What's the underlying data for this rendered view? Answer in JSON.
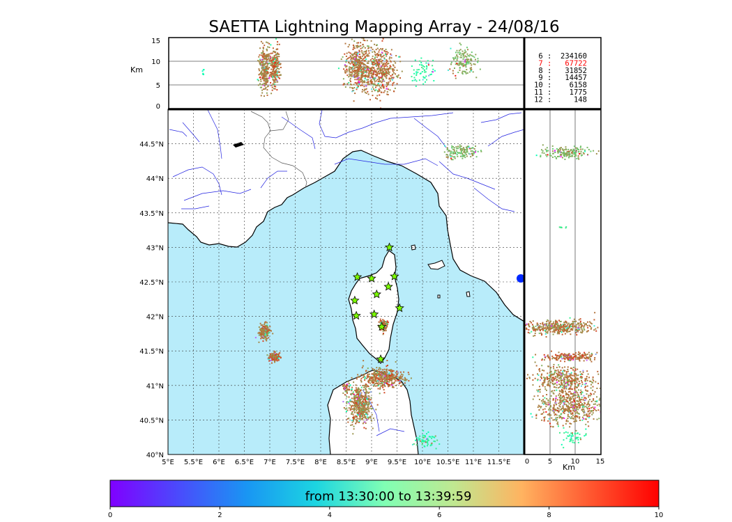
{
  "chart_data": {
    "type": "scatter",
    "title": "SAETTA Lightning Mapping Array - 24/08/16",
    "map": {
      "lon_range": [
        5.0,
        12.0
      ],
      "lat_range": [
        40.0,
        45.0
      ],
      "x_ticks": [
        "5°E",
        "5.5°E",
        "6°E",
        "6.5°E",
        "7°E",
        "7.5°E",
        "8°E",
        "8.5°E",
        "9°E",
        "9.5°E",
        "10°E",
        "10.5°E",
        "11°E",
        "11.5°E"
      ],
      "y_ticks": [
        "40°N",
        "40.5°N",
        "41°N",
        "41.5°N",
        "42°N",
        "42.5°N",
        "43°N",
        "43.5°N",
        "44°N",
        "44.5°N"
      ],
      "sea_color": "#b8ecfa",
      "land_color": "#ffffff",
      "station_color": "#7cfc00",
      "stations": [
        {
          "lon": 9.35,
          "lat": 43.0
        },
        {
          "lon": 8.72,
          "lat": 42.57
        },
        {
          "lon": 9.0,
          "lat": 42.55
        },
        {
          "lon": 9.45,
          "lat": 42.58
        },
        {
          "lon": 9.33,
          "lat": 42.43
        },
        {
          "lon": 9.1,
          "lat": 42.32
        },
        {
          "lon": 8.67,
          "lat": 42.23
        },
        {
          "lon": 9.55,
          "lat": 42.12
        },
        {
          "lon": 8.7,
          "lat": 42.01
        },
        {
          "lon": 9.05,
          "lat": 42.03
        },
        {
          "lon": 9.2,
          "lat": 41.85
        },
        {
          "lon": 9.18,
          "lat": 41.38
        }
      ],
      "clusters": [
        {
          "lon": 6.88,
          "lat": 41.78,
          "slon": 0.05,
          "slat": 0.05,
          "n": 220,
          "t": 8.4
        },
        {
          "lon": 7.08,
          "lat": 41.42,
          "slon": 0.05,
          "slat": 0.03,
          "n": 170,
          "t": 8.7
        },
        {
          "lon": 9.22,
          "lat": 41.88,
          "slon": 0.04,
          "slat": 0.04,
          "n": 120,
          "t": 8.6
        },
        {
          "lon": 8.76,
          "lat": 40.72,
          "slon": 0.11,
          "slat": 0.14,
          "n": 520,
          "t": 8.3
        },
        {
          "lon": 9.22,
          "lat": 41.12,
          "slon": 0.2,
          "slat": 0.07,
          "n": 420,
          "t": 8.5
        },
        {
          "lon": 8.5,
          "lat": 40.97,
          "slon": 0.03,
          "slat": 0.04,
          "n": 40,
          "t": 8.5
        },
        {
          "lon": 10.77,
          "lat": 44.4,
          "slon": 0.16,
          "slat": 0.05,
          "n": 130,
          "t": 7.5
        },
        {
          "lon": 10.05,
          "lat": 40.23,
          "slon": 0.1,
          "slat": 0.06,
          "n": 60,
          "t": 5.8
        }
      ]
    },
    "altitude_lon_panel": {
      "ylabel": "Km",
      "y_range": [
        0,
        15
      ],
      "y_ticks": [
        "0",
        "5",
        "10",
        "15"
      ],
      "gridlines_km": [
        5,
        10
      ],
      "clusters": [
        {
          "lon": 6.88,
          "alt": 8.5,
          "slon": 0.05,
          "salt": 2.4,
          "n": 260,
          "t": 8.3
        },
        {
          "lon": 7.08,
          "alt": 8.8,
          "slon": 0.05,
          "salt": 2.2,
          "n": 220,
          "t": 8.5
        },
        {
          "lon": 8.72,
          "alt": 8.8,
          "slon": 0.13,
          "salt": 2.6,
          "n": 420,
          "t": 8.4
        },
        {
          "lon": 9.15,
          "alt": 8.2,
          "slon": 0.16,
          "salt": 2.6,
          "n": 460,
          "t": 8.5
        },
        {
          "lon": 10.0,
          "alt": 8.2,
          "slon": 0.12,
          "salt": 1.4,
          "n": 60,
          "t": 5.8
        },
        {
          "lon": 10.8,
          "alt": 10.3,
          "slon": 0.12,
          "salt": 1.6,
          "n": 140,
          "t": 7.6
        },
        {
          "lon": 5.68,
          "alt": 7.8,
          "slon": 0.01,
          "salt": 0.5,
          "n": 6,
          "t": 5.0
        }
      ]
    },
    "stats": {
      "rows": [
        {
          "n": "6",
          "count": "234160",
          "color": "#000000"
        },
        {
          "n": "7",
          "count": "67722",
          "color": "#ff0000"
        },
        {
          "n": "8",
          "count": "31852",
          "color": "#000000"
        },
        {
          "n": "9",
          "count": "14457",
          "color": "#000000"
        },
        {
          "n": "10",
          "count": "6158",
          "color": "#000000"
        },
        {
          "n": "11",
          "count": "1775",
          "color": "#000000"
        },
        {
          "n": "12",
          "count": "148",
          "color": "#000000"
        }
      ]
    },
    "altitude_lat_panel": {
      "xlabel": "Km",
      "x_range": [
        0,
        15
      ],
      "x_ticks": [
        "0",
        "5",
        "10",
        "15"
      ],
      "gridlines_km": [
        5,
        10
      ],
      "clusters": [
        {
          "alt": 8.0,
          "lat": 44.38,
          "salt": 2.2,
          "slat": 0.04,
          "n": 170,
          "t": 7.5
        },
        {
          "alt": 6.5,
          "lat": 41.85,
          "salt": 3.8,
          "slat": 0.05,
          "n": 420,
          "t": 8.4
        },
        {
          "alt": 9.0,
          "lat": 41.42,
          "salt": 2.6,
          "slat": 0.03,
          "n": 180,
          "t": 8.6
        },
        {
          "alt": 7.5,
          "lat": 41.1,
          "salt": 2.8,
          "slat": 0.1,
          "n": 380,
          "t": 8.4
        },
        {
          "alt": 9.0,
          "lat": 40.72,
          "salt": 3.0,
          "slat": 0.13,
          "n": 520,
          "t": 8.3
        },
        {
          "alt": 9.0,
          "lat": 40.25,
          "salt": 1.2,
          "slat": 0.06,
          "n": 50,
          "t": 5.8
        },
        {
          "alt": 7.5,
          "lat": 43.3,
          "salt": 0.4,
          "slat": 0.005,
          "n": 8,
          "t": 6.5
        }
      ]
    },
    "colorbar": {
      "label": "from 13:30:00 to 13:39:59",
      "range": [
        0,
        10
      ],
      "ticks": [
        "0",
        "2",
        "4",
        "6",
        "8",
        "10"
      ],
      "colormap": "rainbow"
    }
  }
}
